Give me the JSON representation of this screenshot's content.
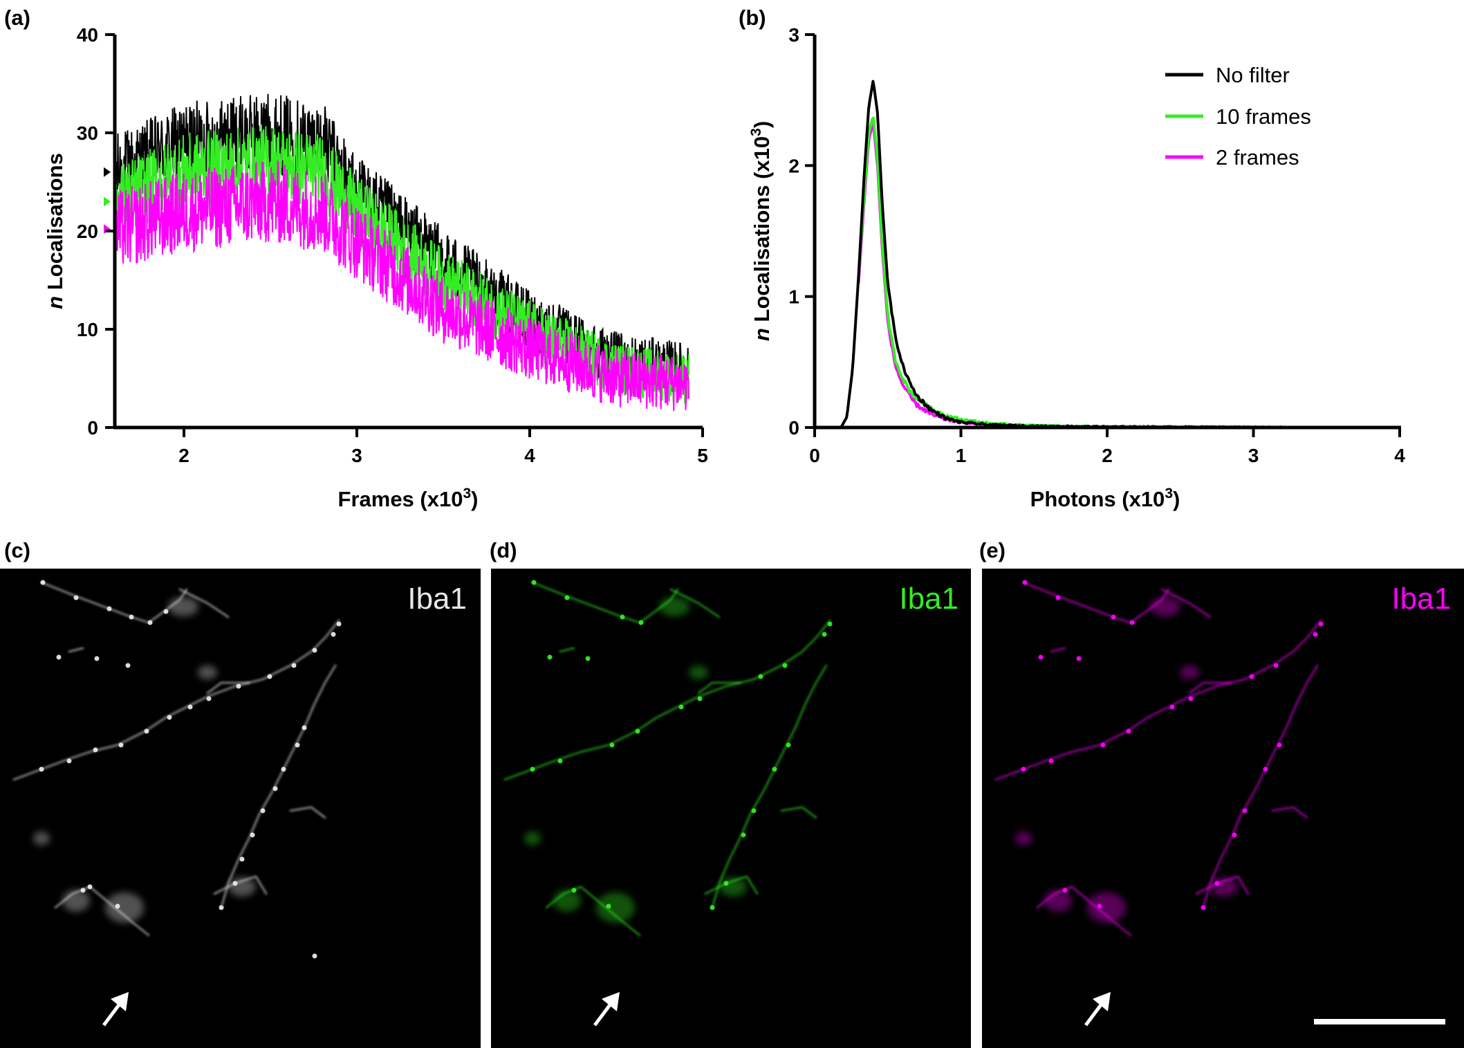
{
  "colors": {
    "no_filter": "#000000",
    "ten_frames": "#33ee22",
    "two_frames": "#ff00ff",
    "panel_bg": "#000000",
    "micro_white": "#e8e8e8"
  },
  "chart_data": [
    {
      "panel": "(a)",
      "type": "line",
      "xlabel": "Frames (x10",
      "xlabel_sup": "3",
      "xlabel_end": ")",
      "ylabel_italic": "n",
      "ylabel": " Localisations",
      "xlim": [
        1.6,
        5.0
      ],
      "ylim": [
        0,
        40
      ],
      "xticks": [
        2,
        3,
        4,
        5
      ],
      "yticks": [
        0,
        10,
        20,
        30,
        40
      ],
      "mean_markers": [
        26.0,
        23.0,
        20.2
      ],
      "series": [
        {
          "key": "no_filter",
          "envelope_x": [
            1.6,
            2.0,
            2.5,
            2.8,
            3.0,
            3.5,
            4.0,
            4.5,
            4.9
          ],
          "envelope_y": [
            26,
            29,
            30,
            29,
            24,
            17,
            11,
            7,
            6
          ],
          "noise": 4.2
        },
        {
          "key": "ten_frames",
          "envelope_x": [
            1.6,
            2.0,
            2.5,
            2.8,
            3.0,
            3.5,
            4.0,
            4.5,
            4.9
          ],
          "envelope_y": [
            23,
            26,
            27,
            26,
            22,
            15,
            10,
            6,
            5
          ],
          "noise": 4.2
        },
        {
          "key": "two_frames",
          "envelope_x": [
            1.6,
            2.0,
            2.5,
            2.8,
            3.0,
            3.5,
            4.0,
            4.5,
            4.9
          ],
          "envelope_y": [
            20,
            22,
            23,
            22,
            19,
            12,
            8,
            5,
            4.5
          ],
          "noise": 4.8
        }
      ]
    },
    {
      "panel": "(b)",
      "type": "line",
      "xlabel": "Photons (x10",
      "xlabel_sup": "3",
      "xlabel_end": ")",
      "ylabel_italic": "n",
      "ylabel": " Localisations (x10",
      "ylabel_sup": "3",
      "ylabel_end": ")",
      "xlim": [
        0,
        4
      ],
      "ylim": [
        0,
        3
      ],
      "xticks": [
        0,
        1,
        2,
        3,
        4
      ],
      "yticks": [
        0,
        1,
        2,
        3
      ],
      "legend_position": "top-right",
      "series": [
        {
          "key": "no_filter",
          "name": "No filter",
          "x": [
            0.18,
            0.22,
            0.26,
            0.3,
            0.34,
            0.37,
            0.4,
            0.43,
            0.46,
            0.5,
            0.55,
            0.6,
            0.65,
            0.7,
            0.8,
            0.9,
            1.0,
            1.2,
            1.5,
            2.0,
            3.0,
            3.2
          ],
          "y": [
            0.0,
            0.08,
            0.45,
            1.15,
            1.95,
            2.45,
            2.65,
            2.4,
            1.75,
            1.1,
            0.7,
            0.48,
            0.34,
            0.24,
            0.13,
            0.07,
            0.04,
            0.02,
            0.01,
            0.005,
            0.002,
            0.0
          ]
        },
        {
          "key": "ten_frames",
          "name": "10 frames",
          "x": [
            0.3,
            0.34,
            0.37,
            0.4,
            0.43,
            0.46,
            0.5,
            0.55,
            0.6,
            0.65,
            0.7,
            0.8,
            0.9,
            1.0,
            1.2,
            1.5,
            2.0,
            3.0,
            3.2
          ],
          "y": [
            1.15,
            1.8,
            2.25,
            2.38,
            2.05,
            1.45,
            0.85,
            0.52,
            0.38,
            0.28,
            0.22,
            0.14,
            0.09,
            0.06,
            0.03,
            0.015,
            0.005,
            0.002,
            0.0
          ]
        },
        {
          "key": "two_frames",
          "name": "2 frames",
          "x": [
            0.3,
            0.34,
            0.37,
            0.4,
            0.43,
            0.46,
            0.5,
            0.55,
            0.6,
            0.65,
            0.7,
            0.8,
            0.9,
            1.0,
            1.2,
            1.5,
            2.0,
            3.0,
            3.2
          ],
          "y": [
            1.1,
            1.75,
            2.2,
            2.33,
            2.0,
            1.4,
            0.8,
            0.48,
            0.33,
            0.24,
            0.17,
            0.1,
            0.06,
            0.04,
            0.02,
            0.01,
            0.004,
            0.001,
            0.0
          ]
        }
      ]
    }
  ],
  "panels": {
    "a": "(a)",
    "b": "(b)",
    "c": "(c)",
    "d": "(d)",
    "e": "(e)"
  },
  "micrographs": [
    {
      "panel": "(c)",
      "label": "Iba1",
      "color_key": "micro_white"
    },
    {
      "panel": "(d)",
      "label": "Iba1",
      "color_key": "ten_frames"
    },
    {
      "panel": "(e)",
      "label": "Iba1",
      "color_key": "two_frames"
    }
  ]
}
